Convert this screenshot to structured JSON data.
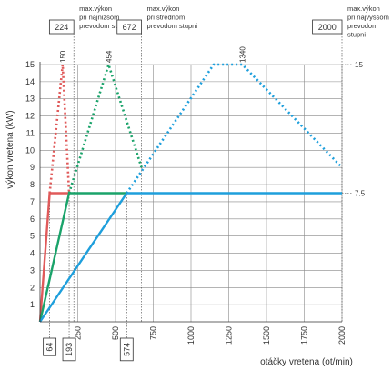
{
  "chart_data": {
    "type": "line",
    "ylabel": "výkon vretena  (kW)",
    "xlabel": "otáčky vretena (ot/min)",
    "xlim": [
      0,
      2000
    ],
    "ylim": [
      0,
      15
    ],
    "x_ticks": [
      250,
      500,
      750,
      1000,
      1250,
      1500,
      1750,
      2000
    ],
    "y_ticks": [
      1,
      2,
      3,
      4,
      5,
      6,
      7,
      8,
      9,
      10,
      11,
      12,
      13,
      14,
      15
    ],
    "grid": true,
    "series": [
      {
        "color": "#e05a5a",
        "points": [
          [
            0,
            0
          ],
          [
            64,
            7.5
          ],
          [
            193,
            7.5
          ]
        ],
        "dotted_points": [
          [
            64,
            7.5
          ],
          [
            150,
            15
          ],
          [
            193,
            7.5
          ]
        ]
      },
      {
        "color": "#1aa36a",
        "points": [
          [
            0,
            0
          ],
          [
            193,
            7.5
          ],
          [
            574,
            7.5
          ]
        ],
        "dotted_points": [
          [
            193,
            7.5
          ],
          [
            454,
            15
          ],
          [
            672,
            9
          ]
        ]
      },
      {
        "color": "#1e9fdc",
        "points": [
          [
            0,
            0
          ],
          [
            574,
            7.5
          ],
          [
            2000,
            7.5
          ]
        ],
        "dotted_points": [
          [
            574,
            7.5
          ],
          [
            1150,
            15
          ],
          [
            1340,
            15
          ],
          [
            2000,
            9
          ]
        ]
      }
    ],
    "peak_labels": [
      {
        "text": "150",
        "x": 150,
        "y": 15
      },
      {
        "text": "454",
        "x": 454,
        "y": 15
      },
      {
        "text": "1340",
        "x": 1340,
        "y": 15
      }
    ],
    "top_boxes": [
      {
        "text": "224",
        "x": 224,
        "note": [
          "max.výkon",
          "pri najnižšom",
          "prevodom stupni"
        ]
      },
      {
        "text": "672",
        "x": 672,
        "note": [
          "max.výkon",
          "pri strednom",
          "prevodom stupni"
        ]
      },
      {
        "text": "2000",
        "x": 2000,
        "note": [
          "max.výkon",
          "pri najvyššom",
          "prevodom",
          "stupni"
        ]
      }
    ],
    "bottom_boxes": [
      {
        "text": "64",
        "x": 64
      },
      {
        "text": "193",
        "x": 193
      },
      {
        "text": "574",
        "x": 574
      }
    ],
    "right_labels": [
      {
        "text": "15",
        "y": 15
      },
      {
        "text": "7.5",
        "y": 7.5
      }
    ]
  }
}
